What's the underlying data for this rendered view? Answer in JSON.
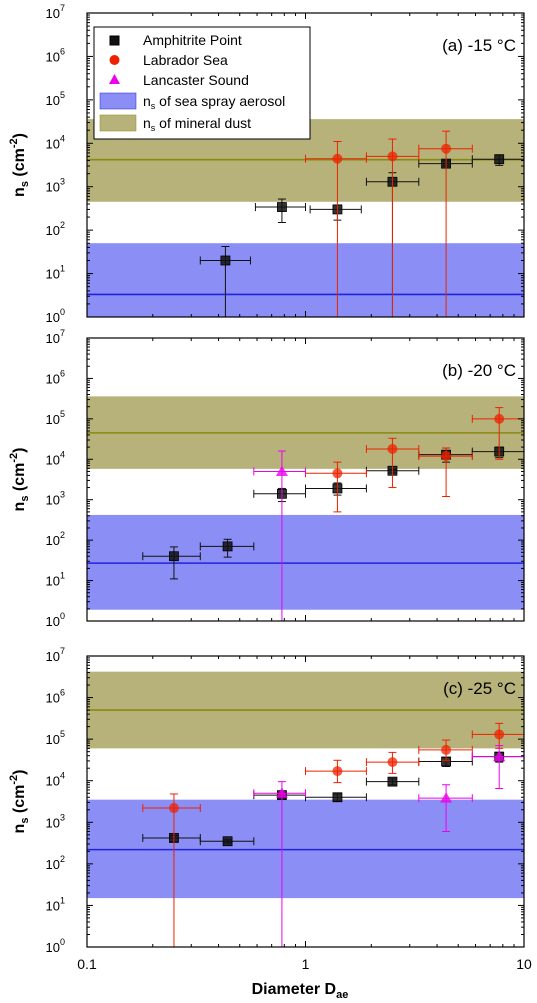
{
  "colors": {
    "amphitrite": "#111111",
    "labrador": "#ee2200",
    "lancaster": "#ee00ee",
    "sea_spray_fill": "#8a8ef5",
    "sea_spray_line": "#2222dd",
    "dust_fill": "#b6b27a",
    "dust_line": "#8a8a10"
  },
  "legend": {
    "amphitrite": "Amphitrite Point",
    "labrador": "Labrador Sea",
    "lancaster": "Lancaster Sound",
    "sea_spray": "n",
    "sea_spray_sub": "s",
    "sea_spray_rest": " of sea spray aerosol",
    "dust": "n",
    "dust_sub": "s",
    "dust_rest": " of mineral dust"
  },
  "axes": {
    "xlabel": "Diameter D",
    "xlabel_sub": "ae",
    "ylabel": "n",
    "ylabel_sub": "s",
    "ylabel_rest": " (cm",
    "ylabel_sup": "-2",
    "ylabel_close": ")",
    "x_ticks": [
      "0.1",
      "1",
      "10"
    ],
    "y_tick_exps": [
      "0",
      "1",
      "2",
      "3",
      "4",
      "5",
      "6",
      "7"
    ],
    "y_tick_base": "10"
  },
  "chart_data": [
    {
      "type": "scatter",
      "title": "(a) -15 °C",
      "x_scale": "log",
      "y_scale": "log",
      "xlim": [
        0.1,
        10
      ],
      "ylim": [
        1,
        10000000
      ],
      "bands": {
        "sea_spray": {
          "low": 1,
          "high": 50,
          "median": 3.3
        },
        "mineral_dust": {
          "low": 450,
          "high": 36000,
          "median": 4200
        }
      },
      "series": [
        {
          "name": "Amphitrite Point",
          "key": "amphitrite",
          "marker": "square",
          "points": [
            {
              "x": 0.43,
              "y": 20,
              "xlo": 0.33,
              "xhi": 0.56,
              "ylo": 1,
              "yhi": 42
            },
            {
              "x": 0.78,
              "y": 340,
              "xlo": 0.59,
              "xhi": 1.0,
              "ylo": 150,
              "yhi": 520
            },
            {
              "x": 1.4,
              "y": 300,
              "xlo": 1.05,
              "xhi": 1.8,
              "ylo": 170,
              "yhi": 380
            },
            {
              "x": 2.5,
              "y": 1300,
              "xlo": 1.9,
              "xhi": 3.3,
              "ylo": 1,
              "yhi": 2100
            },
            {
              "x": 4.4,
              "y": 3400,
              "xlo": 3.3,
              "xhi": 5.8,
              "ylo": 3000,
              "yhi": 3900
            },
            {
              "x": 7.7,
              "y": 4300,
              "xlo": 5.8,
              "xhi": 10,
              "ylo": 3100,
              "yhi": 5400
            }
          ]
        },
        {
          "name": "Labrador Sea",
          "key": "labrador",
          "marker": "circle",
          "points": [
            {
              "x": 1.4,
              "y": 4400,
              "xlo": 1.0,
              "xhi": 1.9,
              "ylo": 1,
              "yhi": 11000
            },
            {
              "x": 2.5,
              "y": 5000,
              "xlo": 1.9,
              "xhi": 3.3,
              "ylo": 1,
              "yhi": 12500
            },
            {
              "x": 4.4,
              "y": 7500,
              "xlo": 3.3,
              "xhi": 5.8,
              "ylo": 1,
              "yhi": 19000
            }
          ]
        }
      ]
    },
    {
      "type": "scatter",
      "title": "(b) -20 °C",
      "x_scale": "log",
      "y_scale": "log",
      "xlim": [
        0.1,
        10
      ],
      "ylim": [
        1,
        10000000
      ],
      "bands": {
        "sea_spray": {
          "low": 1.9,
          "high": 420,
          "median": 27
        },
        "mineral_dust": {
          "low": 5800,
          "high": 360000,
          "median": 45000
        }
      },
      "series": [
        {
          "name": "Amphitrite Point",
          "key": "amphitrite",
          "marker": "square",
          "points": [
            {
              "x": 0.25,
              "y": 40,
              "xlo": 0.18,
              "xhi": 0.33,
              "ylo": 11,
              "yhi": 68
            },
            {
              "x": 0.44,
              "y": 70,
              "xlo": 0.33,
              "xhi": 0.58,
              "ylo": 38,
              "yhi": 105
            },
            {
              "x": 0.78,
              "y": 1400,
              "xlo": 0.58,
              "xhi": 1.0,
              "ylo": 900,
              "yhi": 1900
            },
            {
              "x": 1.4,
              "y": 1900,
              "xlo": 1.0,
              "xhi": 1.9,
              "ylo": 1300,
              "yhi": 2600
            },
            {
              "x": 2.5,
              "y": 5200,
              "xlo": 1.9,
              "xhi": 3.3,
              "ylo": 4600,
              "yhi": 5600
            },
            {
              "x": 4.4,
              "y": 13000,
              "xlo": 3.3,
              "xhi": 5.8,
              "ylo": 8500,
              "yhi": 19000
            },
            {
              "x": 7.7,
              "y": 15500,
              "xlo": 5.8,
              "xhi": 10,
              "ylo": 11000,
              "yhi": 20000
            }
          ]
        },
        {
          "name": "Labrador Sea",
          "key": "labrador",
          "marker": "circle",
          "points": [
            {
              "x": 1.4,
              "y": 4500,
              "xlo": 1.0,
              "xhi": 1.9,
              "ylo": 500,
              "yhi": 8500
            },
            {
              "x": 2.5,
              "y": 18000,
              "xlo": 1.9,
              "xhi": 3.3,
              "ylo": 2000,
              "yhi": 33000
            },
            {
              "x": 4.4,
              "y": 12000,
              "xlo": 3.3,
              "xhi": 5.8,
              "ylo": 1200,
              "yhi": 19000
            },
            {
              "x": 7.7,
              "y": 100000,
              "xlo": 5.8,
              "xhi": 10,
              "ylo": 10000,
              "yhi": 190000
            }
          ]
        },
        {
          "name": "Lancaster Sound",
          "key": "lancaster",
          "marker": "triangle",
          "points": [
            {
              "x": 0.78,
              "y": 5000,
              "xlo": 0.58,
              "xhi": 1.0,
              "ylo": 1,
              "yhi": 16000
            }
          ]
        }
      ]
    },
    {
      "type": "scatter",
      "title": "(c) -25 °C",
      "x_scale": "log",
      "y_scale": "log",
      "xlim": [
        0.1,
        10
      ],
      "ylim": [
        1,
        10000000
      ],
      "bands": {
        "sea_spray": {
          "low": 15,
          "high": 3500,
          "median": 220
        },
        "mineral_dust": {
          "low": 60000,
          "high": 4200000,
          "median": 500000
        }
      },
      "series": [
        {
          "name": "Amphitrite Point",
          "key": "amphitrite",
          "marker": "square",
          "points": [
            {
              "x": 0.25,
              "y": 420,
              "xlo": 0.18,
              "xhi": 0.33,
              "ylo": 340,
              "yhi": 480
            },
            {
              "x": 0.44,
              "y": 350,
              "xlo": 0.33,
              "xhi": 0.58,
              "ylo": 320,
              "yhi": 380
            },
            {
              "x": 0.78,
              "y": 4500,
              "xlo": 0.58,
              "xhi": 1.0,
              "ylo": 3800,
              "yhi": 5200
            },
            {
              "x": 1.4,
              "y": 4000,
              "xlo": 1.0,
              "xhi": 1.9,
              "ylo": 3200,
              "yhi": 4800
            },
            {
              "x": 2.5,
              "y": 9500,
              "xlo": 1.9,
              "xhi": 3.3,
              "ylo": 8000,
              "yhi": 11000
            },
            {
              "x": 4.4,
              "y": 29000,
              "xlo": 3.3,
              "xhi": 5.8,
              "ylo": 22000,
              "yhi": 36000
            },
            {
              "x": 7.7,
              "y": 38000,
              "xlo": 5.8,
              "xhi": 10,
              "ylo": 28000,
              "yhi": 48000
            }
          ]
        },
        {
          "name": "Labrador Sea",
          "key": "labrador",
          "marker": "circle",
          "points": [
            {
              "x": 0.25,
              "y": 2200,
              "xlo": 0.18,
              "xhi": 0.33,
              "ylo": 1,
              "yhi": 4800
            },
            {
              "x": 1.4,
              "y": 17000,
              "xlo": 1.0,
              "xhi": 1.9,
              "ylo": 9000,
              "yhi": 31000
            },
            {
              "x": 2.5,
              "y": 28000,
              "xlo": 1.9,
              "xhi": 3.3,
              "ylo": 15000,
              "yhi": 48000
            },
            {
              "x": 4.4,
              "y": 55000,
              "xlo": 3.3,
              "xhi": 5.8,
              "ylo": 30000,
              "yhi": 95000
            },
            {
              "x": 7.7,
              "y": 130000,
              "xlo": 5.8,
              "xhi": 10,
              "ylo": 60000,
              "yhi": 240000
            }
          ]
        },
        {
          "name": "Lancaster Sound",
          "key": "lancaster",
          "marker": "triangle",
          "points": [
            {
              "x": 0.78,
              "y": 5000,
              "xlo": 0.58,
              "xhi": 1.0,
              "ylo": 1,
              "yhi": 9500
            },
            {
              "x": 4.4,
              "y": 3800,
              "xlo": 3.3,
              "xhi": 5.8,
              "ylo": 600,
              "yhi": 8000
            },
            {
              "x": 7.7,
              "y": 38000,
              "xlo": 5.8,
              "xhi": 10,
              "ylo": 6500,
              "yhi": 70000
            }
          ]
        }
      ]
    }
  ]
}
